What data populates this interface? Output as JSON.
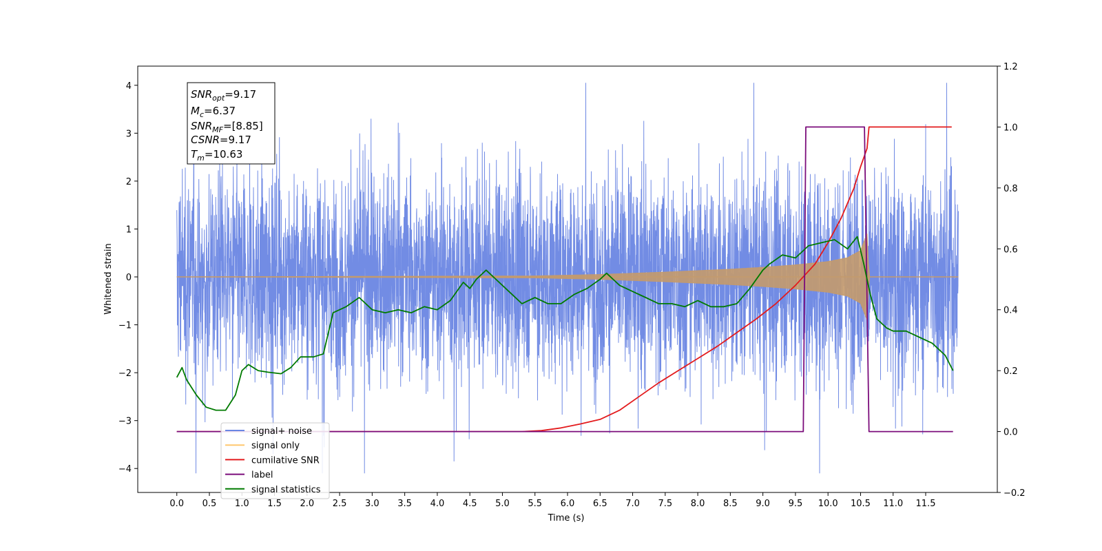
{
  "chart_data": {
    "type": "line",
    "xlabel": "Time (s)",
    "ylabel": "Whitened strain",
    "xlim": [
      -0.6,
      12.6
    ],
    "ylim": [
      -4.5,
      4.4
    ],
    "y2lim": [
      -0.2,
      1.2
    ],
    "x_ticks": [
      "0.0",
      "0.5",
      "1.0",
      "1.5",
      "2.0",
      "2.5",
      "3.0",
      "3.5",
      "4.0",
      "4.5",
      "5.0",
      "5.5",
      "6.0",
      "6.5",
      "7.0",
      "7.5",
      "8.0",
      "8.5",
      "9.0",
      "9.5",
      "10.0",
      "10.5",
      "11.0",
      "11.5"
    ],
    "y_ticks": [
      "-4",
      "-3",
      "-2",
      "-1",
      "0",
      "1",
      "2",
      "3",
      "4"
    ],
    "y2_ticks": [
      "-0.2",
      "0.0",
      "0.2",
      "0.4",
      "0.6",
      "0.8",
      "1.0",
      "1.2"
    ],
    "grid": false,
    "legend_position": "lower-left",
    "colors": {
      "noise": "#6a86e3",
      "signal": "#c49a6c",
      "cumulative_snr": "#e31a1c",
      "label": "#7b0c7b",
      "statistics": "#007a00"
    },
    "annotation": {
      "snr_opt": {
        "main": "SNR",
        "sub": "opt",
        "value": "=9.17"
      },
      "mc": {
        "main": "M",
        "sub": "c",
        "value": "=6.37"
      },
      "snr_mf": {
        "main": "SNR",
        "sub": "MF",
        "value": "=[8.85]"
      },
      "csnr": {
        "main": "CSNR",
        "value": "=9.17"
      },
      "tm": {
        "main": "T",
        "sub": "m",
        "value": "=10.63"
      }
    },
    "series": [
      {
        "name": "signal+ noise",
        "axis": "left",
        "style": "noise",
        "t_start": 0.0,
        "t_end": 12.0,
        "std": 1.0
      },
      {
        "name": "signal only",
        "axis": "left",
        "style": "chirp",
        "t": [
          0,
          5.5,
          6.5,
          7.5,
          8.5,
          9.0,
          9.5,
          10.0,
          10.3,
          10.5,
          10.6,
          10.63,
          12.0
        ],
        "amplitude": [
          0.0,
          0.02,
          0.05,
          0.1,
          0.16,
          0.2,
          0.25,
          0.32,
          0.4,
          0.55,
          0.9,
          0.0,
          0.0
        ]
      },
      {
        "name": "cumilative SNR",
        "axis": "right",
        "x": [
          0.0,
          5.0,
          5.3,
          5.6,
          5.9,
          6.2,
          6.5,
          6.8,
          7.1,
          7.4,
          7.7,
          8.0,
          8.3,
          8.6,
          8.9,
          9.2,
          9.5,
          9.8,
          10.0,
          10.2,
          10.4,
          10.5,
          10.6,
          10.63,
          11.9
        ],
        "y": [
          0.0,
          0.0,
          0.0,
          0.003,
          0.012,
          0.025,
          0.04,
          0.07,
          0.115,
          0.16,
          0.2,
          0.24,
          0.28,
          0.325,
          0.37,
          0.42,
          0.48,
          0.55,
          0.62,
          0.7,
          0.8,
          0.87,
          0.93,
          1.0,
          1.0
        ]
      },
      {
        "name": "label",
        "axis": "right",
        "x": [
          0.0,
          9.62,
          9.66,
          10.56,
          10.63,
          11.92
        ],
        "y": [
          0.0,
          0.0,
          1.0,
          1.0,
          0.0,
          0.0
        ]
      },
      {
        "name": "signal statistics",
        "axis": "right",
        "x": [
          0.0,
          0.08,
          0.15,
          0.3,
          0.45,
          0.6,
          0.75,
          0.9,
          1.0,
          1.1,
          1.25,
          1.4,
          1.6,
          1.75,
          1.9,
          2.1,
          2.25,
          2.4,
          2.6,
          2.8,
          3.0,
          3.2,
          3.4,
          3.6,
          3.8,
          4.0,
          4.2,
          4.4,
          4.5,
          4.6,
          4.75,
          4.9,
          5.1,
          5.3,
          5.5,
          5.7,
          5.9,
          6.1,
          6.3,
          6.5,
          6.6,
          6.8,
          7.0,
          7.2,
          7.4,
          7.6,
          7.8,
          8.0,
          8.2,
          8.4,
          8.6,
          8.8,
          9.0,
          9.1,
          9.3,
          9.5,
          9.7,
          9.9,
          10.1,
          10.3,
          10.45,
          10.55,
          10.65,
          10.75,
          10.9,
          11.0,
          11.2,
          11.4,
          11.6,
          11.8,
          11.92
        ],
        "y": [
          0.178,
          0.21,
          0.17,
          0.12,
          0.08,
          0.07,
          0.07,
          0.12,
          0.2,
          0.22,
          0.2,
          0.195,
          0.19,
          0.21,
          0.245,
          0.245,
          0.255,
          0.39,
          0.41,
          0.44,
          0.4,
          0.39,
          0.4,
          0.39,
          0.41,
          0.4,
          0.43,
          0.49,
          0.47,
          0.5,
          0.53,
          0.5,
          0.46,
          0.42,
          0.44,
          0.42,
          0.42,
          0.45,
          0.47,
          0.5,
          0.52,
          0.48,
          0.46,
          0.44,
          0.42,
          0.42,
          0.41,
          0.43,
          0.41,
          0.41,
          0.42,
          0.47,
          0.53,
          0.55,
          0.58,
          0.57,
          0.61,
          0.62,
          0.63,
          0.6,
          0.64,
          0.55,
          0.45,
          0.37,
          0.34,
          0.33,
          0.33,
          0.31,
          0.29,
          0.25,
          0.2
        ]
      }
    ]
  }
}
